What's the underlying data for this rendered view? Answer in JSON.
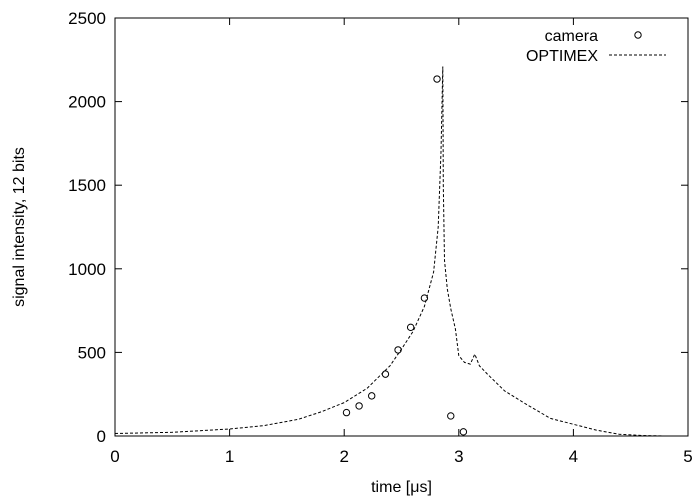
{
  "chart_data": {
    "type": "scatter",
    "title": "",
    "xlabel": "time [μs]",
    "ylabel": "signal intensity, 12 bits",
    "xlim": [
      0,
      5
    ],
    "ylim": [
      0,
      2500
    ],
    "x_ticks": [
      0,
      1,
      2,
      3,
      4,
      5
    ],
    "y_ticks": [
      0,
      500,
      1000,
      1500,
      2000,
      2500
    ],
    "grid": false,
    "legend_position": "top-right",
    "series": [
      {
        "name": "camera",
        "style": "open-circle-markers",
        "color": "#000000",
        "points": [
          {
            "x": 2.02,
            "y": 140
          },
          {
            "x": 2.13,
            "y": 180
          },
          {
            "x": 2.24,
            "y": 240
          },
          {
            "x": 2.36,
            "y": 370
          },
          {
            "x": 2.47,
            "y": 515
          },
          {
            "x": 2.58,
            "y": 650
          },
          {
            "x": 2.7,
            "y": 825
          },
          {
            "x": 2.81,
            "y": 2135
          },
          {
            "x": 2.93,
            "y": 120
          },
          {
            "x": 3.04,
            "y": 25
          }
        ]
      },
      {
        "name": "OPTIMEX",
        "style": "dashed-line",
        "color": "#000000",
        "points": [
          {
            "x": 0.0,
            "y": 15
          },
          {
            "x": 0.5,
            "y": 22
          },
          {
            "x": 1.0,
            "y": 42
          },
          {
            "x": 1.3,
            "y": 62
          },
          {
            "x": 1.6,
            "y": 100
          },
          {
            "x": 1.8,
            "y": 145
          },
          {
            "x": 2.0,
            "y": 200
          },
          {
            "x": 2.2,
            "y": 285
          },
          {
            "x": 2.4,
            "y": 420
          },
          {
            "x": 2.5,
            "y": 520
          },
          {
            "x": 2.6,
            "y": 625
          },
          {
            "x": 2.7,
            "y": 775
          },
          {
            "x": 2.78,
            "y": 980
          },
          {
            "x": 2.82,
            "y": 1250
          },
          {
            "x": 2.845,
            "y": 1700
          },
          {
            "x": 2.86,
            "y": 2210
          },
          {
            "x": 2.865,
            "y": 1500
          },
          {
            "x": 2.875,
            "y": 1050
          },
          {
            "x": 2.9,
            "y": 880
          },
          {
            "x": 2.93,
            "y": 760
          },
          {
            "x": 2.97,
            "y": 640
          },
          {
            "x": 3.0,
            "y": 480
          },
          {
            "x": 3.05,
            "y": 440
          },
          {
            "x": 3.1,
            "y": 430
          },
          {
            "x": 3.14,
            "y": 490
          },
          {
            "x": 3.18,
            "y": 420
          },
          {
            "x": 3.25,
            "y": 370
          },
          {
            "x": 3.4,
            "y": 270
          },
          {
            "x": 3.6,
            "y": 185
          },
          {
            "x": 3.8,
            "y": 105
          },
          {
            "x": 4.0,
            "y": 70
          },
          {
            "x": 4.2,
            "y": 35
          },
          {
            "x": 4.4,
            "y": 10
          },
          {
            "x": 4.6,
            "y": 3
          },
          {
            "x": 4.8,
            "y": 0
          }
        ]
      }
    ]
  }
}
